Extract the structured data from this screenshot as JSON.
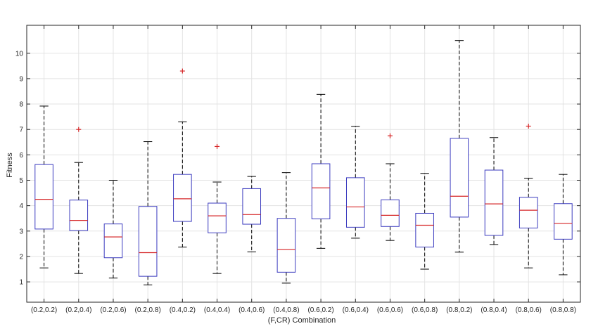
{
  "chart_data": {
    "type": "box",
    "title": "",
    "xlabel": "(F,CR) Combination",
    "ylabel": "Fitness",
    "ylim": [
      0.2,
      11.1
    ],
    "yticks": [
      1,
      2,
      3,
      4,
      5,
      6,
      7,
      8,
      9,
      10
    ],
    "grid": true,
    "categories": [
      "(0.2,0.2)",
      "(0.2,0.4)",
      "(0.2,0.6)",
      "(0.2,0.8)",
      "(0.4,0.2)",
      "(0.4,0.4)",
      "(0.4,0.6)",
      "(0.4,0.8)",
      "(0.6,0.2)",
      "(0.6,0.4)",
      "(0.6,0.6)",
      "(0.6,0.8)",
      "(0.8,0.2)",
      "(0.8,0.4)",
      "(0.8,0.6)",
      "(0.8,0.8)"
    ],
    "boxes": [
      {
        "min": 1.55,
        "q1": 3.08,
        "median": 4.25,
        "q3": 5.62,
        "max": 7.92,
        "outliers": []
      },
      {
        "min": 1.33,
        "q1": 3.02,
        "median": 3.42,
        "q3": 4.22,
        "max": 5.7,
        "outliers": [
          7.0
        ]
      },
      {
        "min": 1.15,
        "q1": 1.95,
        "median": 2.77,
        "q3": 3.28,
        "max": 5.0,
        "outliers": []
      },
      {
        "min": 0.88,
        "q1": 1.22,
        "median": 2.15,
        "q3": 3.97,
        "max": 6.52,
        "outliers": []
      },
      {
        "min": 2.37,
        "q1": 3.38,
        "median": 4.27,
        "q3": 5.23,
        "max": 7.3,
        "outliers": [
          9.3
        ]
      },
      {
        "min": 1.33,
        "q1": 2.93,
        "median": 3.6,
        "q3": 4.1,
        "max": 4.93,
        "outliers": [
          6.33
        ]
      },
      {
        "min": 2.18,
        "q1": 3.27,
        "median": 3.65,
        "q3": 4.67,
        "max": 5.15,
        "outliers": []
      },
      {
        "min": 0.95,
        "q1": 1.38,
        "median": 2.27,
        "q3": 3.5,
        "max": 5.3,
        "outliers": []
      },
      {
        "min": 2.32,
        "q1": 3.48,
        "median": 4.7,
        "q3": 5.65,
        "max": 8.38,
        "outliers": []
      },
      {
        "min": 2.72,
        "q1": 3.15,
        "median": 3.95,
        "q3": 5.1,
        "max": 7.12,
        "outliers": []
      },
      {
        "min": 2.63,
        "q1": 3.18,
        "median": 3.62,
        "q3": 4.23,
        "max": 5.65,
        "outliers": [
          6.75
        ]
      },
      {
        "min": 1.5,
        "q1": 2.37,
        "median": 3.23,
        "q3": 3.7,
        "max": 5.27,
        "outliers": []
      },
      {
        "min": 2.17,
        "q1": 3.55,
        "median": 4.37,
        "q3": 6.65,
        "max": 10.5,
        "outliers": []
      },
      {
        "min": 2.47,
        "q1": 2.83,
        "median": 4.07,
        "q3": 5.4,
        "max": 6.68,
        "outliers": []
      },
      {
        "min": 1.55,
        "q1": 3.12,
        "median": 3.82,
        "q3": 4.33,
        "max": 5.08,
        "outliers": [
          7.13
        ]
      },
      {
        "min": 1.28,
        "q1": 2.68,
        "median": 3.3,
        "q3": 4.08,
        "max": 5.23,
        "outliers": []
      }
    ],
    "colors": {
      "box": "#3b3bbf",
      "median": "#d62728",
      "whisker": "#000000",
      "outlier": "#d62728",
      "grid": "#e3e3e3",
      "axis": "#262626"
    }
  }
}
